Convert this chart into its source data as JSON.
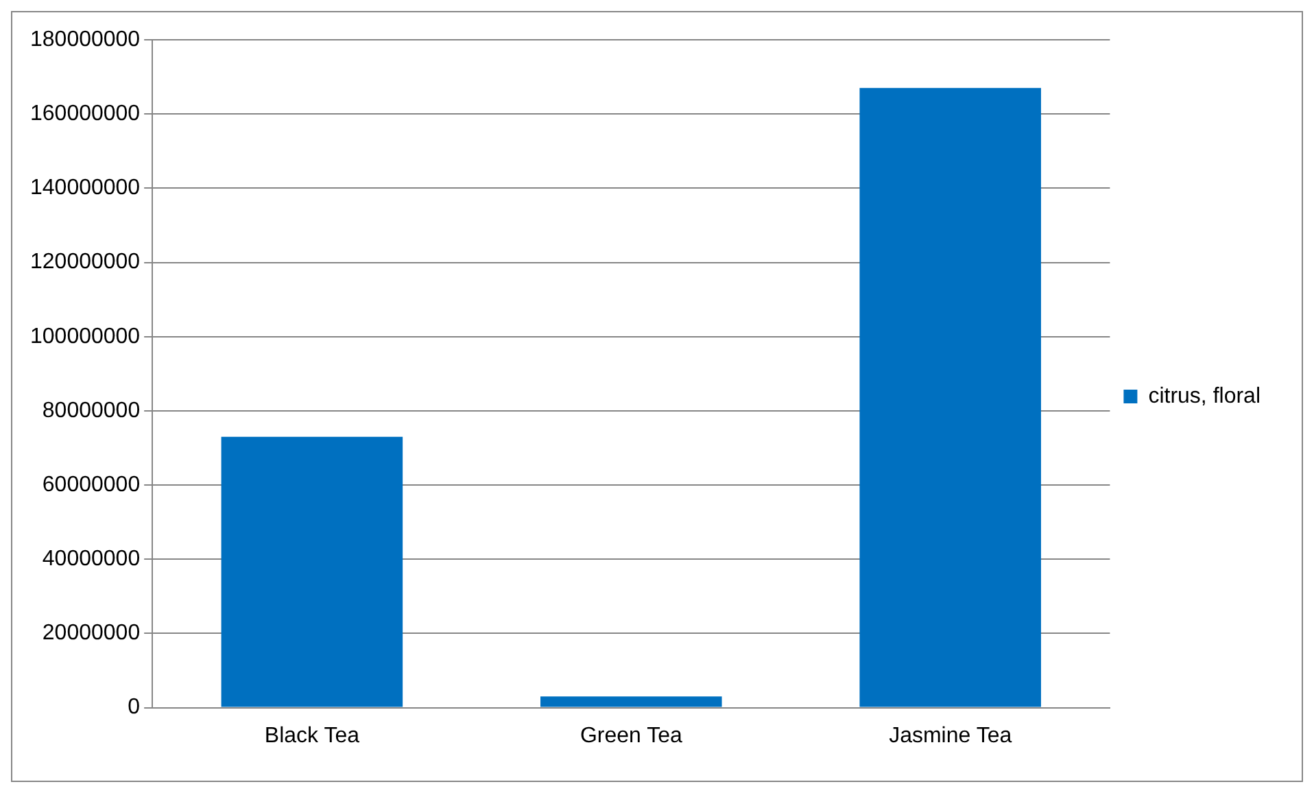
{
  "chart_data": {
    "type": "bar",
    "categories": [
      "Black Tea",
      "Green Tea",
      "Jasmine Tea"
    ],
    "series": [
      {
        "name": "citrus, floral",
        "color": "#0070c0",
        "values": [
          73000000,
          3000000,
          167000000
        ]
      }
    ],
    "ylim": [
      0,
      180000000
    ],
    "yticks": [
      0,
      20000000,
      40000000,
      60000000,
      80000000,
      100000000,
      120000000,
      140000000,
      160000000,
      180000000
    ],
    "grid": "y",
    "legend": "right"
  }
}
